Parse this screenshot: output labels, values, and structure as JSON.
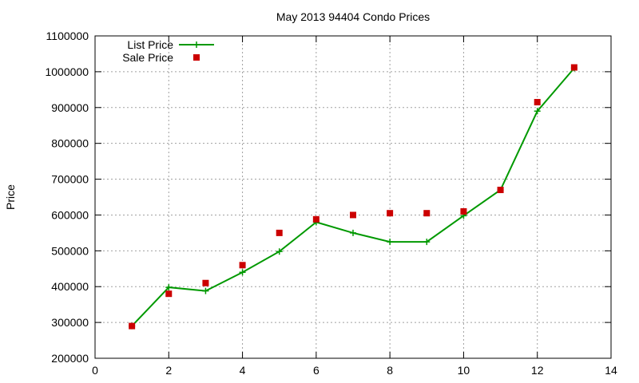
{
  "chart_data": {
    "type": "line",
    "title": "May 2013 94404 Condo Prices",
    "xlabel": "",
    "ylabel": "Price",
    "xlim": [
      0,
      14
    ],
    "ylim": [
      200000,
      1100000
    ],
    "xticks": [
      0,
      2,
      4,
      6,
      8,
      10,
      12,
      14
    ],
    "yticks": [
      200000,
      300000,
      400000,
      500000,
      600000,
      700000,
      800000,
      900000,
      1000000,
      1100000
    ],
    "grid": true,
    "legend_position": "top-left",
    "series": [
      {
        "name": "List Price",
        "style": "line-with-plus",
        "color": "#009900",
        "x": [
          1,
          2,
          3,
          4,
          5,
          6,
          7,
          8,
          9,
          10,
          11,
          12,
          13
        ],
        "y": [
          290000,
          398000,
          388000,
          440000,
          498000,
          580000,
          550000,
          525000,
          525000,
          598000,
          670000,
          890000,
          1010000
        ]
      },
      {
        "name": "Sale Price",
        "style": "square-markers",
        "color": "#cc0000",
        "x": [
          1,
          2,
          3,
          4,
          5,
          6,
          7,
          8,
          9,
          10,
          11,
          12,
          13
        ],
        "y": [
          290000,
          380000,
          410000,
          460000,
          550000,
          588000,
          600000,
          605000,
          605000,
          610000,
          670000,
          915000,
          1012000
        ]
      }
    ]
  }
}
